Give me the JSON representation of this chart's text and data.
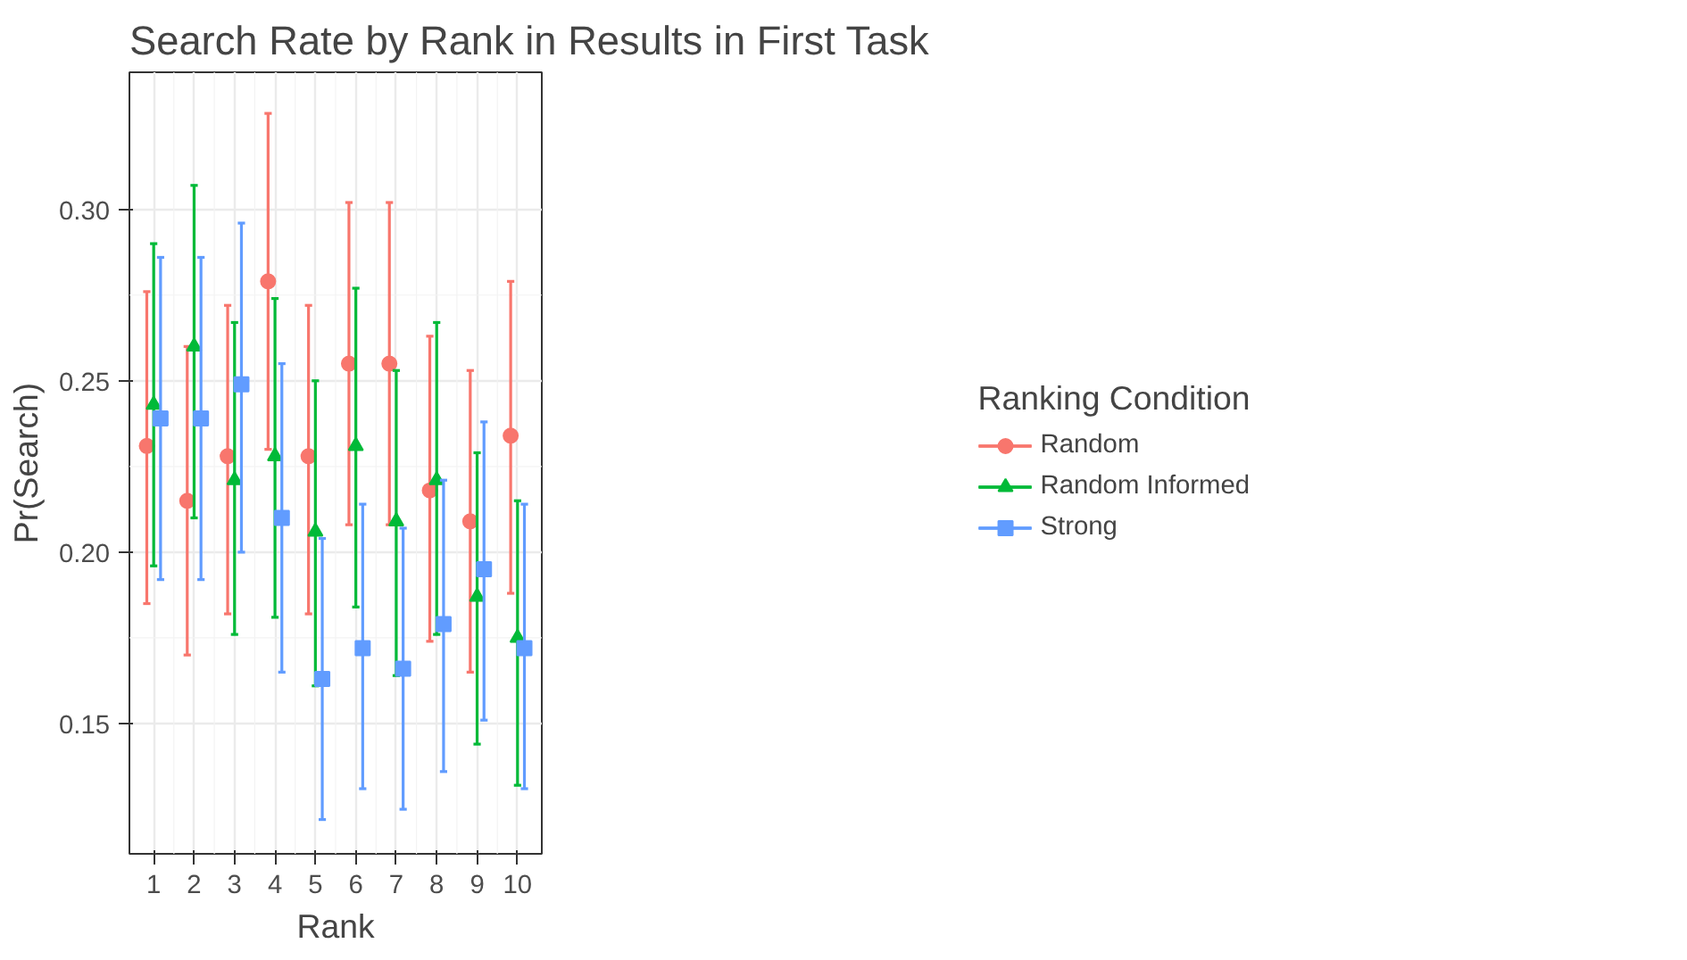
{
  "chart_data": {
    "type": "scatter",
    "title": "Search Rate by Rank in Results in First Task",
    "xlabel": "Rank",
    "ylabel": "Pr(Search)",
    "legend_title": "Ranking Condition",
    "legend": "right",
    "grid": true,
    "categories": [
      "1",
      "2",
      "3",
      "4",
      "5",
      "6",
      "7",
      "8",
      "9",
      "10"
    ],
    "ylim": [
      0.112,
      0.34
    ],
    "yticks": [
      {
        "value": 0.15,
        "label": "0.15"
      },
      {
        "value": 0.2,
        "label": "0.20"
      },
      {
        "value": 0.25,
        "label": "0.25"
      },
      {
        "value": 0.3,
        "label": "0.30"
      }
    ],
    "series": [
      {
        "name": "Random",
        "color": "#f8766d",
        "marker": "circle",
        "values": [
          0.231,
          0.215,
          0.228,
          0.279,
          0.228,
          0.255,
          0.255,
          0.218,
          0.209,
          0.234
        ],
        "errors": [
          [
            0.185,
            0.276
          ],
          [
            0.17,
            0.26
          ],
          [
            0.182,
            0.272
          ],
          [
            0.23,
            0.328
          ],
          [
            0.182,
            0.272
          ],
          [
            0.208,
            0.302
          ],
          [
            0.208,
            0.302
          ],
          [
            0.174,
            0.263
          ],
          [
            0.165,
            0.253
          ],
          [
            0.188,
            0.279
          ]
        ]
      },
      {
        "name": "Random Informed",
        "color": "#00ba38",
        "marker": "triangle",
        "values": [
          0.243,
          0.26,
          0.221,
          0.228,
          0.206,
          0.231,
          0.209,
          0.221,
          0.187,
          0.175
        ],
        "errors": [
          [
            0.196,
            0.29
          ],
          [
            0.21,
            0.307
          ],
          [
            0.176,
            0.267
          ],
          [
            0.181,
            0.274
          ],
          [
            0.161,
            0.25
          ],
          [
            0.184,
            0.277
          ],
          [
            0.164,
            0.253
          ],
          [
            0.176,
            0.267
          ],
          [
            0.144,
            0.229
          ],
          [
            0.132,
            0.215
          ]
        ]
      },
      {
        "name": "Strong",
        "color": "#619cff",
        "marker": "square",
        "values": [
          0.239,
          0.239,
          0.249,
          0.21,
          0.163,
          0.172,
          0.166,
          0.179,
          0.195,
          0.172
        ],
        "errors": [
          [
            0.192,
            0.286
          ],
          [
            0.192,
            0.286
          ],
          [
            0.2,
            0.296
          ],
          [
            0.165,
            0.255
          ],
          [
            0.122,
            0.204
          ],
          [
            0.131,
            0.214
          ],
          [
            0.125,
            0.207
          ],
          [
            0.136,
            0.221
          ],
          [
            0.151,
            0.238
          ],
          [
            0.131,
            0.214
          ]
        ]
      }
    ]
  }
}
